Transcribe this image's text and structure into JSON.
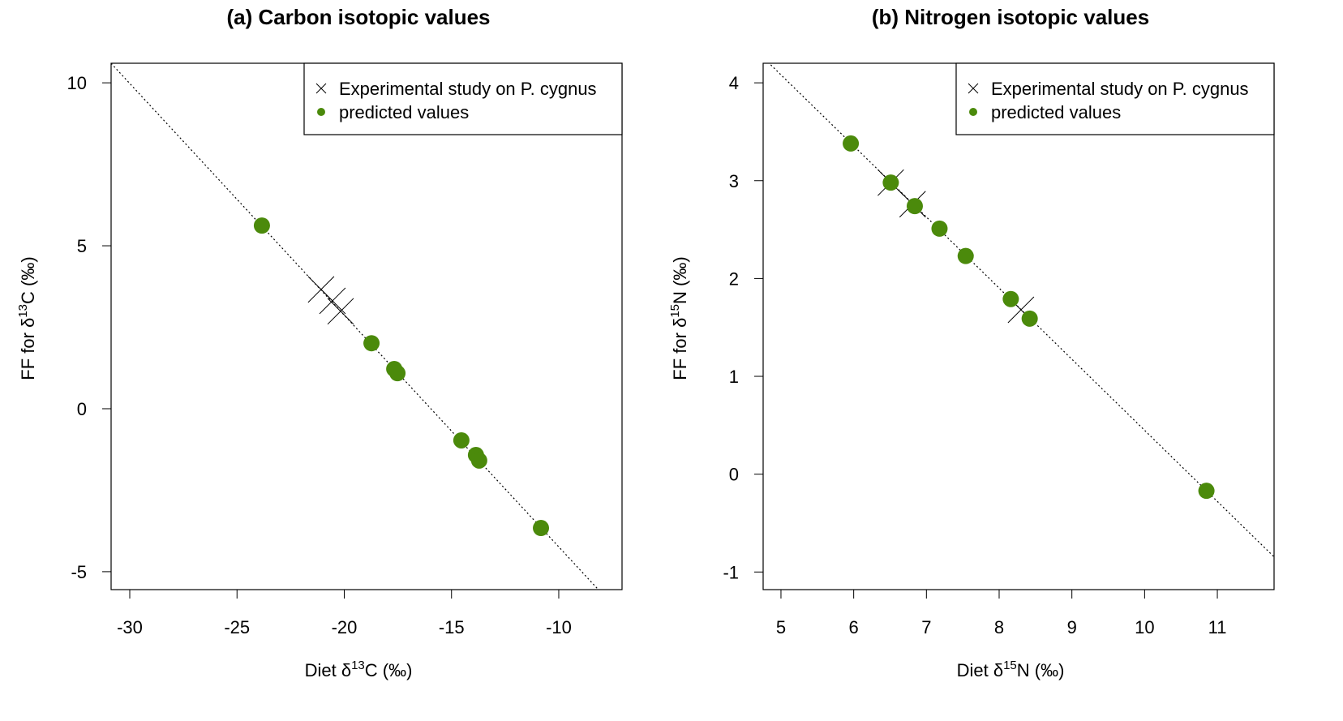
{
  "chart_data": [
    {
      "type": "scatter",
      "title": "(a) Carbon isotopic values",
      "xlabel": [
        "Diet δ",
        "13",
        "C (‰)"
      ],
      "ylabel": [
        "FF for δ",
        "13",
        "C (‰)"
      ],
      "xlim": [
        -30.87,
        -7.05
      ],
      "ylim": [
        -5.55,
        10.6
      ],
      "xticks": [
        -30,
        -25,
        -20,
        -15,
        -10
      ],
      "yticks": [
        -5,
        0,
        5,
        10
      ],
      "legend": "top-right",
      "reference_line": {
        "x": [
          -31,
          -8
        ],
        "y": [
          10.69,
          -5.66
        ]
      },
      "series": [
        {
          "name": "Experimental study on P. cygnus",
          "color": "#000000",
          "marker": "x",
          "x": [
            -21.08,
            -20.55,
            -20.17
          ],
          "values": [
            3.66,
            3.31,
            2.99
          ]
        },
        {
          "name": "predicted values",
          "color": "#4b8a0b",
          "marker": "o",
          "x": [
            -23.84,
            -18.73,
            -17.67,
            -17.52,
            -14.54,
            -13.86,
            -13.71,
            -10.83
          ],
          "values": [
            5.62,
            2.01,
            1.22,
            1.09,
            -0.97,
            -1.42,
            -1.59,
            -3.66
          ]
        }
      ]
    },
    {
      "type": "scatter",
      "title": "(b) Nitrogen isotopic values",
      "xlabel": [
        "Diet δ",
        "15",
        "N (‰)"
      ],
      "ylabel": [
        "FF for δ",
        "15",
        "N (‰)"
      ],
      "xlim": [
        4.755,
        11.78
      ],
      "ylim": [
        -1.18,
        4.2
      ],
      "xticks": [
        5,
        6,
        7,
        8,
        9,
        10,
        11
      ],
      "yticks": [
        -1,
        0,
        1,
        2,
        3,
        4
      ],
      "legend": "top-right",
      "reference_line": {
        "x": [
          4.7,
          11.8
        ],
        "y": [
          4.3,
          -0.86
        ]
      },
      "series": [
        {
          "name": "Experimental study on P. cygnus",
          "color": "#000000",
          "marker": "x",
          "x": [
            6.51,
            6.81,
            8.3
          ],
          "values": [
            2.98,
            2.76,
            1.68
          ]
        },
        {
          "name": "predicted values",
          "color": "#4b8a0b",
          "marker": "o",
          "x": [
            5.96,
            6.51,
            6.84,
            7.18,
            7.54,
            8.16,
            8.42,
            10.85
          ],
          "values": [
            3.38,
            2.98,
            2.74,
            2.51,
            2.23,
            1.79,
            1.59,
            -0.17
          ]
        }
      ]
    }
  ]
}
